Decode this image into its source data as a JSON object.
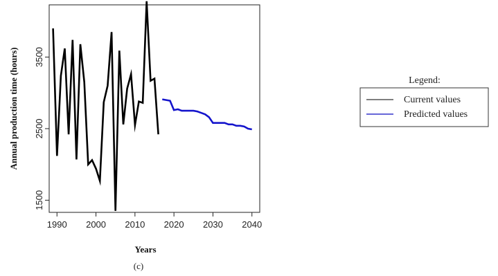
{
  "chart_data": {
    "type": "line",
    "title": "",
    "xlabel": "Years",
    "ylabel": "Annual production time (hours)",
    "caption": "(c)",
    "xlim": [
      1988,
      2042
    ],
    "ylim": [
      1330,
      4230
    ],
    "x_ticks": [
      1990,
      2000,
      2010,
      2020,
      2030,
      2040
    ],
    "y_ticks": [
      1500,
      2500,
      3500
    ],
    "grid": false,
    "legend": {
      "title": "Legend:",
      "placement": "right",
      "entries": [
        {
          "label": "Current values",
          "color": "#555555"
        },
        {
          "label": "Predicted values",
          "color": "#3333cc"
        }
      ]
    },
    "series": [
      {
        "name": "Current values",
        "color": "#000000",
        "x": [
          1989,
          1990,
          1991,
          1992,
          1993,
          1994,
          1995,
          1996,
          1997,
          1998,
          1999,
          2000,
          2001,
          2002,
          2003,
          2004,
          2005,
          2006,
          2007,
          2008,
          2009,
          2010,
          2011,
          2012,
          2013,
          2014,
          2015,
          2016
        ],
        "y": [
          3900,
          2120,
          3240,
          3620,
          2420,
          3740,
          2070,
          3680,
          3150,
          2000,
          2060,
          1940,
          1770,
          2870,
          3100,
          3850,
          1350,
          3590,
          2560,
          3060,
          3260,
          2550,
          2880,
          2860,
          4280,
          3170,
          3200,
          2420
        ]
      },
      {
        "name": "Predicted values",
        "color": "#1414cc",
        "x": [
          2017,
          2018,
          2019,
          2020,
          2021,
          2022,
          2023,
          2024,
          2025,
          2026,
          2027,
          2028,
          2029,
          2030,
          2031,
          2032,
          2033,
          2034,
          2035,
          2036,
          2037,
          2038,
          2039,
          2040
        ],
        "y": [
          2910,
          2900,
          2890,
          2760,
          2770,
          2750,
          2750,
          2750,
          2750,
          2740,
          2720,
          2700,
          2660,
          2580,
          2580,
          2580,
          2580,
          2560,
          2560,
          2540,
          2540,
          2530,
          2500,
          2490
        ]
      }
    ]
  }
}
